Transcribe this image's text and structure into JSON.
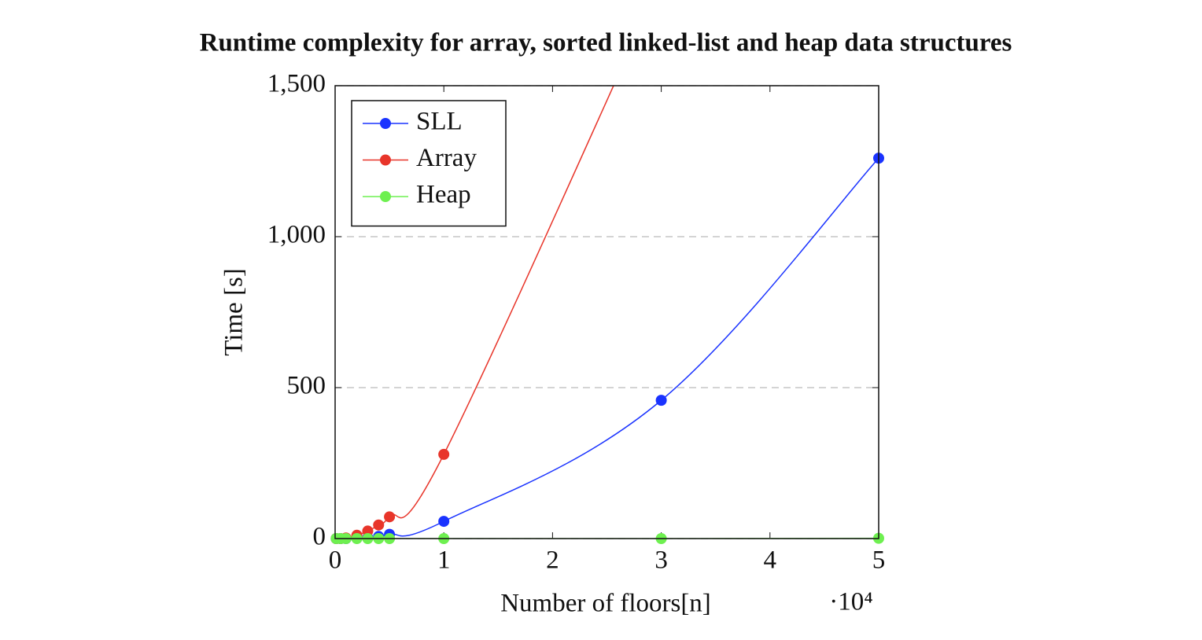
{
  "chart_data": {
    "type": "line",
    "title": "Runtime complexity for array, sorted linked-list and heap data structures",
    "x_label": "Number of floors[n]",
    "y_label": "Time [s]",
    "x_scale_label": "·10⁴",
    "x": [
      100,
      500,
      1000,
      2000,
      3000,
      4000,
      5000,
      10000,
      30000,
      50000
    ],
    "series": [
      {
        "name": "SLL",
        "color": "#1a33ff",
        "values": [
          0,
          0,
          0,
          1,
          3,
          7,
          14,
          57,
          458,
          1260
        ]
      },
      {
        "name": "Array",
        "color": "#e8352a",
        "values": [
          0,
          0,
          2,
          11,
          25,
          45,
          72,
          279,
          1850,
          null
        ]
      },
      {
        "name": "Heap",
        "color": "#6ef050",
        "values": [
          0,
          0,
          0,
          0,
          0,
          0,
          0,
          0,
          0,
          1
        ]
      }
    ],
    "xlim": [
      0,
      50000
    ],
    "ylim": [
      0,
      1500
    ],
    "xticks": [
      0,
      {
        "value": 10000,
        "label": "1"
      },
      {
        "value": 20000,
        "label": "2"
      },
      {
        "value": 30000,
        "label": "3"
      },
      {
        "value": 40000,
        "label": "4"
      },
      {
        "value": 50000,
        "label": "5"
      }
    ],
    "yticks": [
      0,
      500,
      {
        "value": 1000,
        "label": "1,000"
      },
      {
        "value": 1500,
        "label": "1,500"
      }
    ],
    "grid": "y",
    "smooth": true,
    "legend_position": "north west"
  }
}
